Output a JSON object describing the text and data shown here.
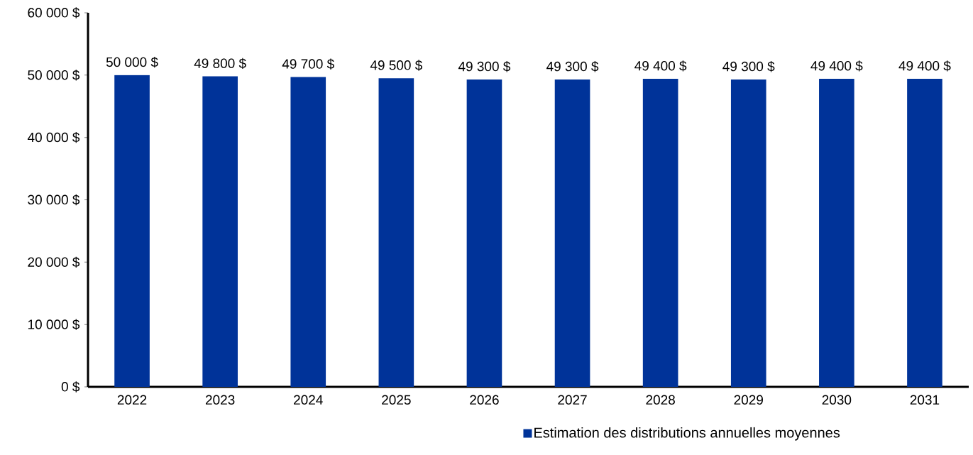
{
  "chart_data": {
    "type": "bar",
    "categories": [
      "2022",
      "2023",
      "2024",
      "2025",
      "2026",
      "2027",
      "2028",
      "2029",
      "2030",
      "2031"
    ],
    "series": [
      {
        "name": "Estimation des distributions annuelles moyennes",
        "color": "#003399",
        "values": [
          50000,
          49800,
          49700,
          49500,
          49300,
          49300,
          49400,
          49300,
          49400,
          49400
        ],
        "value_labels": [
          "50 000 $",
          "49 800 $",
          "49 700 $",
          "49 500 $",
          "49 300 $",
          "49 300 $",
          "49 400 $",
          "49 300 $",
          "49 400 $",
          "49 400 $"
        ]
      }
    ],
    "ylim": [
      0,
      60000
    ],
    "yticks": [
      {
        "value": 0,
        "label": "0 $"
      },
      {
        "value": 10000,
        "label": "10 000 $"
      },
      {
        "value": 20000,
        "label": "20 000 $"
      },
      {
        "value": 30000,
        "label": "30 000 $"
      },
      {
        "value": 40000,
        "label": "40 000 $"
      },
      {
        "value": 50000,
        "label": "50 000 $"
      },
      {
        "value": 60000,
        "label": "60 000 $"
      }
    ],
    "grid": false,
    "legend": "bottom"
  }
}
